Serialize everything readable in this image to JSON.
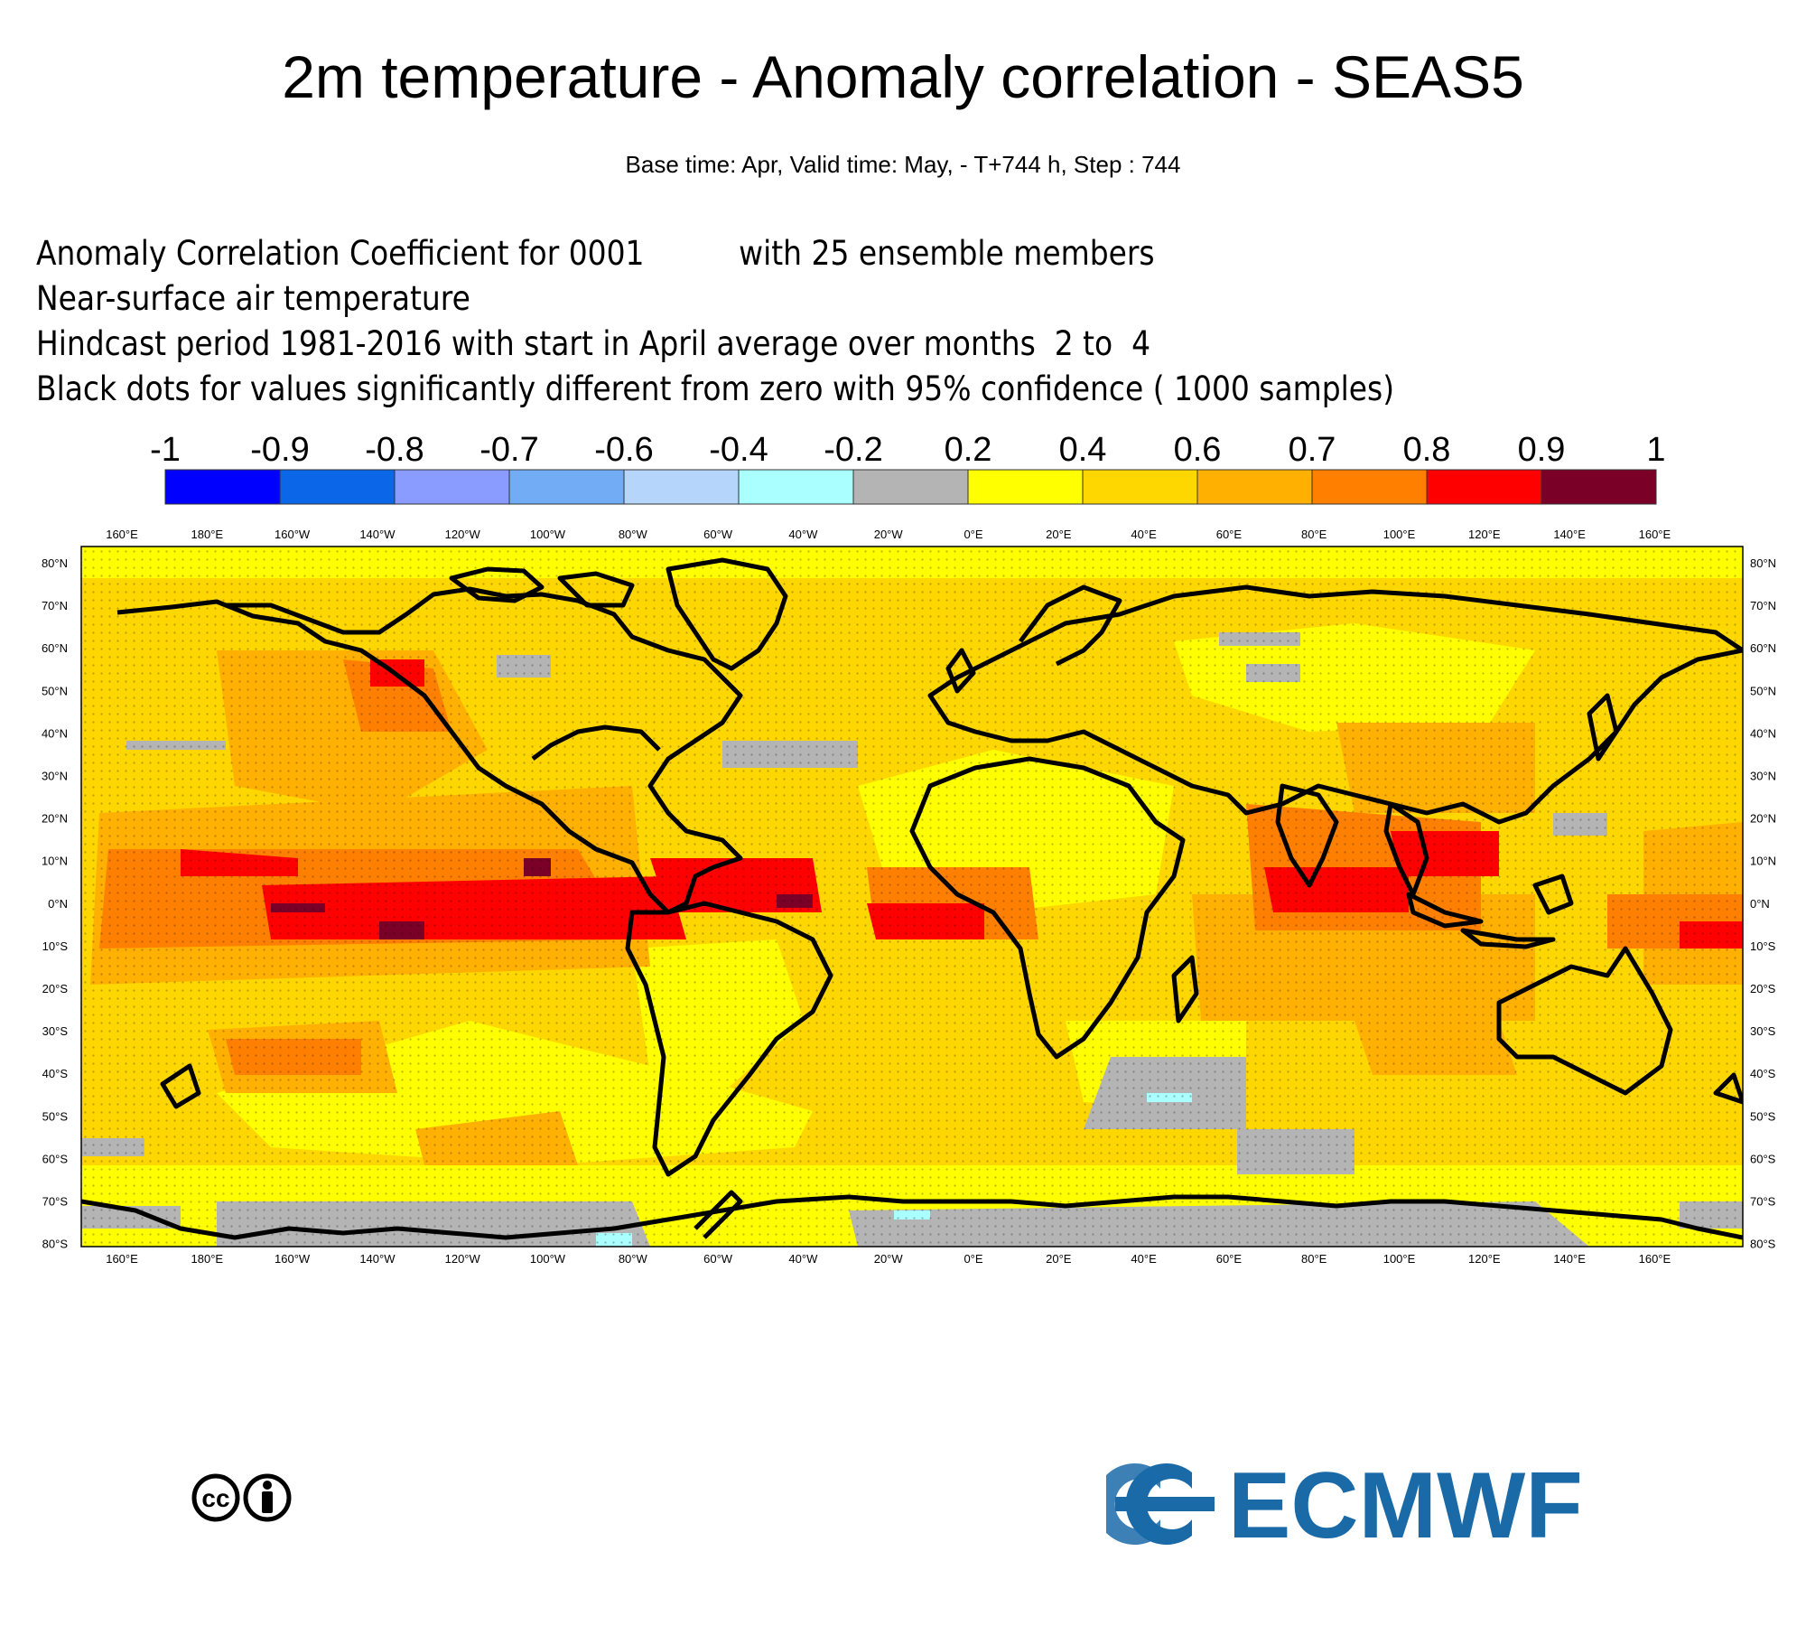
{
  "header": {
    "title": "2m temperature - Anomaly correlation - SEAS5",
    "subtitle": "Base time: Apr, Valid time: May, - T+744 h, Step : 744"
  },
  "info": {
    "line1": "Anomaly Correlation Coefficient for 0001          with 25 ensemble members",
    "line2": "Near-surface air temperature",
    "line3": "Hindcast period 1981-2016 with start in April average over months  2 to  4",
    "line4": "Black dots for values significantly different from zero with 95% confidence ( 1000 samples)"
  },
  "colorbar": {
    "labels": [
      "-1",
      "-0.9",
      "-0.8",
      "-0.7",
      "-0.6",
      "-0.4",
      "-0.2",
      "0.2",
      "0.4",
      "0.6",
      "0.7",
      "0.8",
      "0.9",
      "1"
    ],
    "colors": [
      "#0000ff",
      "#0b66e8",
      "#8a9cff",
      "#72acf4",
      "#b5d6fa",
      "#aaffff",
      "#b4b4b4",
      "#ffff00",
      "#ffd700",
      "#ffb000",
      "#ff8000",
      "#ff0000",
      "#7a0028"
    ]
  },
  "map": {
    "lon_labels": [
      "160°E",
      "180°E",
      "160°W",
      "140°W",
      "120°W",
      "100°W",
      "80°W",
      "60°W",
      "40°W",
      "20°W",
      "0°E",
      "20°E",
      "40°E",
      "60°E",
      "80°E",
      "100°E",
      "120°E",
      "140°E",
      "160°E"
    ],
    "lat_labels": [
      "80°N",
      "70°N",
      "60°N",
      "50°N",
      "40°N",
      "30°N",
      "20°N",
      "10°N",
      "0°N",
      "10°S",
      "20°S",
      "30°S",
      "40°S",
      "50°S",
      "60°S",
      "70°S",
      "80°S"
    ],
    "regions": {
      "enso_core": {
        "level": 0.9,
        "color": "#7a0028"
      },
      "tropics": {
        "level": 0.8,
        "color": "#ff0000"
      },
      "subtropics": {
        "level": 0.7,
        "color": "#ff8000"
      },
      "midlat": {
        "level": 0.6,
        "color": "#ffb000"
      },
      "land": {
        "level": 0.4,
        "color": "#ffd700"
      },
      "weak": {
        "level": 0.2,
        "color": "#ffff00"
      },
      "insignificant": {
        "level": 0.0,
        "color": "#b4b4b4"
      },
      "negative": {
        "level": -0.4,
        "color": "#aaffff"
      }
    }
  },
  "logos": {
    "cc": "cc",
    "ecmwf": "ECMWF",
    "ecmwf_color": "#1a6aa8"
  }
}
